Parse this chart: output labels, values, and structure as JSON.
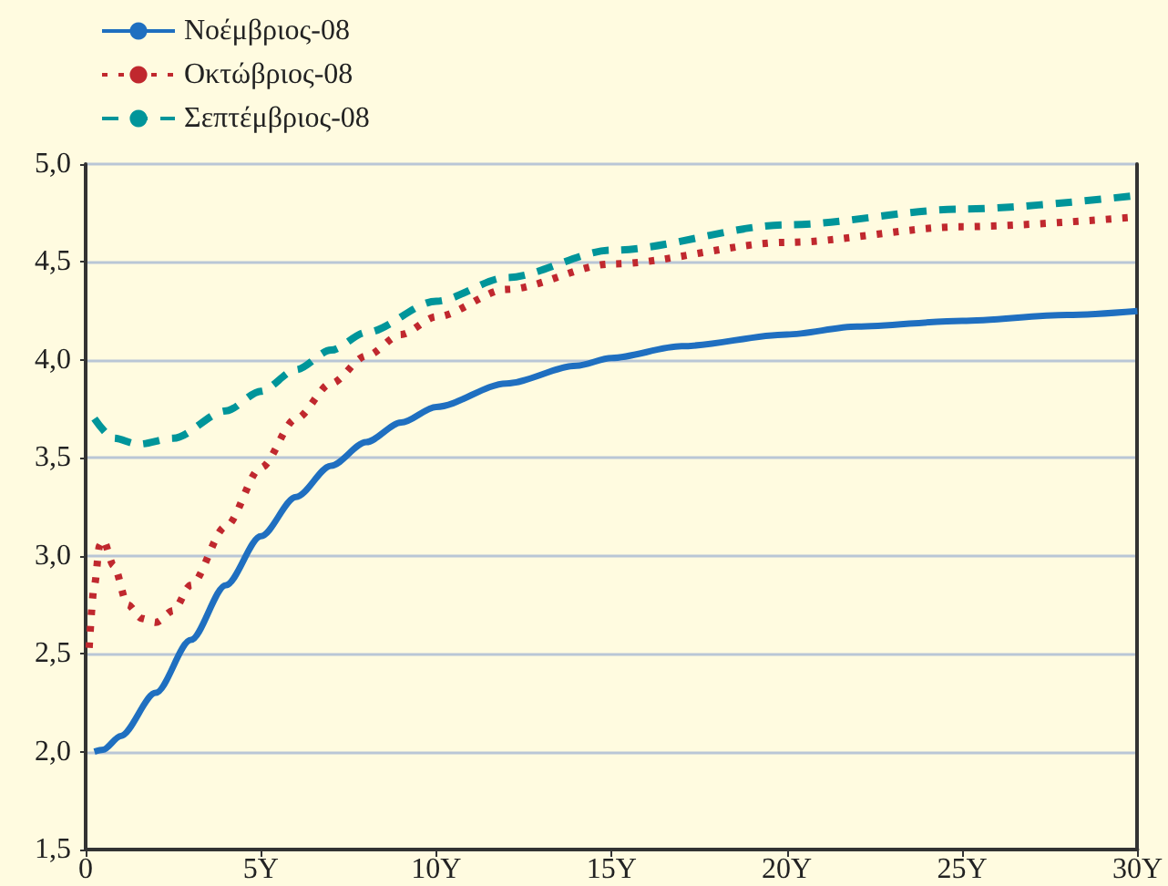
{
  "chart_data": {
    "type": "line",
    "legend": "top left",
    "grid": "y",
    "marker": "none",
    "xlim": [
      0,
      30
    ],
    "xticks": [
      0,
      {
        "value": 5,
        "label": "5Y"
      },
      {
        "value": 10,
        "label": "10Y"
      },
      {
        "value": 15,
        "label": "15Y"
      },
      {
        "value": 20,
        "label": "20Y"
      },
      {
        "value": 25,
        "label": "25Y"
      },
      {
        "value": 30,
        "label": "30Y"
      }
    ],
    "ylim": [
      1.5,
      5
    ],
    "yticks": [
      {
        "value": 1.5,
        "label": "1,5"
      },
      {
        "value": 2,
        "label": "2,0"
      },
      {
        "value": 2.5,
        "label": "2,5"
      },
      {
        "value": 3,
        "label": "3,0"
      },
      {
        "value": 3.5,
        "label": "3,5"
      },
      {
        "value": 4,
        "label": "4,0"
      },
      {
        "value": 4.5,
        "label": "4,5"
      },
      {
        "value": 5,
        "label": "5,0"
      }
    ],
    "series": [
      {
        "name": "Νοέμβριος-08",
        "color": "#1f6fc0",
        "line_style": "solid",
        "x": [
          0.25,
          0.5,
          1,
          2,
          3,
          4,
          5,
          6,
          7,
          8,
          9,
          10,
          12,
          14,
          15,
          17,
          20,
          22,
          25,
          28,
          30
        ],
        "values": [
          2.0,
          2.01,
          2.08,
          2.3,
          2.57,
          2.85,
          3.1,
          3.3,
          3.46,
          3.58,
          3.68,
          3.76,
          3.88,
          3.97,
          4.01,
          4.07,
          4.13,
          4.17,
          4.2,
          4.23,
          4.25
        ]
      },
      {
        "name": "Οκτώβριος-08",
        "color": "#c0282e",
        "line_style": "dotted",
        "x": [
          0.1,
          0.25,
          0.4,
          0.5,
          0.8,
          1.2,
          1.6,
          2,
          2.5,
          3,
          4,
          5,
          6,
          7,
          8,
          9,
          10,
          12,
          15,
          20,
          25,
          30
        ],
        "values": [
          2.53,
          2.85,
          3.05,
          3.08,
          2.95,
          2.75,
          2.68,
          2.66,
          2.72,
          2.85,
          3.15,
          3.45,
          3.7,
          3.88,
          4.02,
          4.13,
          4.22,
          4.36,
          4.49,
          4.6,
          4.68,
          4.73
        ]
      },
      {
        "name": "Σεπτέμβριος-08",
        "color": "#00959a",
        "line_style": "dashed",
        "x": [
          0.25,
          0.8,
          1.5,
          2.5,
          4,
          5,
          6,
          7,
          8,
          10,
          12,
          15,
          20,
          25,
          30
        ],
        "values": [
          3.7,
          3.6,
          3.57,
          3.6,
          3.74,
          3.84,
          3.95,
          4.05,
          4.14,
          4.3,
          4.42,
          4.56,
          4.69,
          4.77,
          4.84
        ]
      }
    ]
  }
}
